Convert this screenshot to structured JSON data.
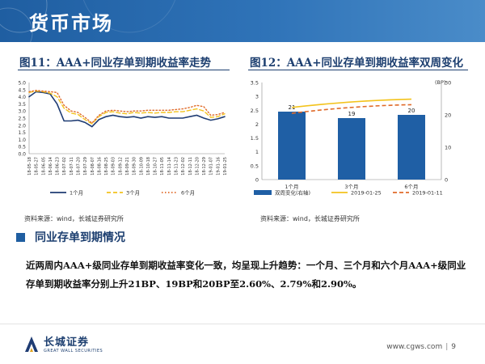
{
  "header": {
    "title": "货币市场"
  },
  "figures": {
    "left": {
      "title": "图11：AAA+同业存单到期收益率走势",
      "source": "资料来源：wind，长城证券研究所"
    },
    "right": {
      "title": "图12：AAA+同业存单到期收益率双周变化",
      "source": "资料来源：wind，长城证券研究所"
    }
  },
  "section": {
    "title": "同业存单到期情况"
  },
  "body": {
    "paragraph": "近两周内AAA+级同业存单到期收益率变化一致，均呈现上升趋势：一个月、三个月和六个月AAA+级同业存单到期收益率分别上升21BP、19BP和20BP至2.60%、2.79%和2.90%。"
  },
  "footer": {
    "logo_cn": "长城证券",
    "logo_en": "GREAT WALL SECURITIES",
    "website": "www.cgws.com",
    "page": "9"
  },
  "colors": {
    "brand": "#1f5ea1",
    "navy": "#1f3c73",
    "yellow": "#f3c31d",
    "orange": "#e06b2a",
    "bar": "#1f5fa5"
  },
  "chart_data": [
    {
      "type": "line",
      "title": "",
      "ylim": [
        0,
        5
      ],
      "y_ticks": [
        "0.0",
        "0.5",
        "1.0",
        "1.5",
        "2.0",
        "2.5",
        "3.0",
        "3.5",
        "4.0",
        "4.5",
        "5.0"
      ],
      "x": [
        "18-05-18",
        "18-05-27",
        "18-06-05",
        "18-06-14",
        "18-06-23",
        "18-07-02",
        "18-07-11",
        "18-07-20",
        "18-07-29",
        "18-08-07",
        "18-08-16",
        "18-08-25",
        "18-09-03",
        "18-09-12",
        "18-09-21",
        "18-09-30",
        "18-10-09",
        "18-10-18",
        "18-10-27",
        "18-11-05",
        "18-11-14",
        "18-11-23",
        "18-12-02",
        "18-12-11",
        "18-12-20",
        "18-12-29",
        "19-01-07",
        "19-01-16",
        "19-01-25"
      ],
      "series": [
        {
          "name": "1个月",
          "color": "#1f3c73",
          "style": "solid",
          "values": [
            4.0,
            4.35,
            4.3,
            4.2,
            3.5,
            2.3,
            2.3,
            2.35,
            2.2,
            1.9,
            2.4,
            2.6,
            2.7,
            2.6,
            2.55,
            2.6,
            2.5,
            2.6,
            2.55,
            2.6,
            2.5,
            2.5,
            2.5,
            2.6,
            2.7,
            2.5,
            2.35,
            2.45,
            2.6
          ]
        },
        {
          "name": "3个月",
          "color": "#f3c31d",
          "style": "dashed",
          "values": [
            4.3,
            4.4,
            4.35,
            4.25,
            4.0,
            3.2,
            2.85,
            2.75,
            2.4,
            2.1,
            2.6,
            2.9,
            2.95,
            2.85,
            2.8,
            2.9,
            2.85,
            2.9,
            2.85,
            2.9,
            2.9,
            2.95,
            2.95,
            3.05,
            3.15,
            3.0,
            2.55,
            2.6,
            2.8
          ]
        },
        {
          "name": "6个月",
          "color": "#e06b2a",
          "style": "dotted",
          "values": [
            4.35,
            4.45,
            4.4,
            4.35,
            4.3,
            3.4,
            3.0,
            2.9,
            2.55,
            2.15,
            2.7,
            3.0,
            3.05,
            3.0,
            2.95,
            3.0,
            3.0,
            3.05,
            3.05,
            3.05,
            3.05,
            3.1,
            3.15,
            3.25,
            3.4,
            3.3,
            2.7,
            2.75,
            2.9
          ]
        }
      ]
    },
    {
      "type": "bar",
      "title": "",
      "categories": [
        "1个月",
        "3个月",
        "6个月"
      ],
      "ylim_left": [
        0,
        3.5
      ],
      "y_ticks_left": [
        "0",
        "0.5",
        "1",
        "1.5",
        "2",
        "2.5",
        "3",
        "3.5"
      ],
      "ylim_right": [
        0,
        30
      ],
      "y_ticks_right": [
        "0",
        "10",
        "20",
        "30"
      ],
      "right_axis_unit": "(BP)",
      "bars": {
        "name": "双周变化(右轴)",
        "color": "#1f5fa5",
        "values": [
          21,
          19,
          20
        ]
      },
      "lines": [
        {
          "name": "2019-01-25",
          "color": "#f3c31d",
          "style": "solid",
          "values": [
            2.6,
            2.79,
            2.9
          ]
        },
        {
          "name": "2019-01-11",
          "color": "#e06b2a",
          "style": "dashed",
          "values": [
            2.39,
            2.6,
            2.7
          ]
        }
      ]
    }
  ]
}
